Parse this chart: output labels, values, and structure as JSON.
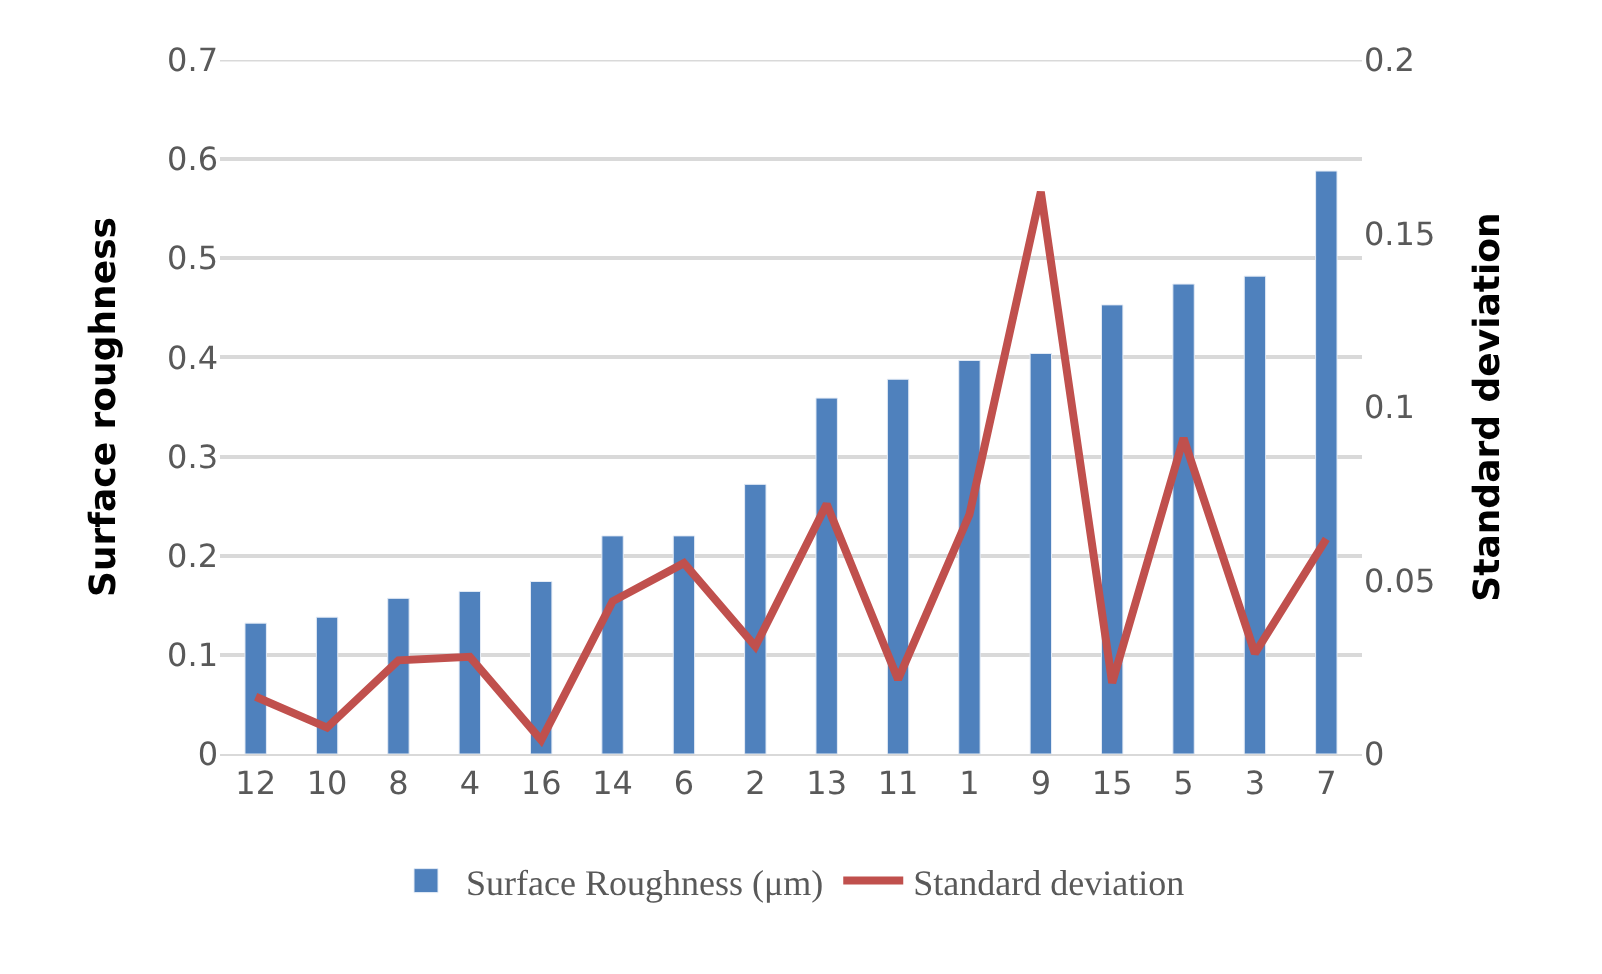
{
  "chart_data": {
    "type": "bar",
    "ylabel": "Surface roughness",
    "y2label": "Standard deviation",
    "categories": [
      "12",
      "10",
      "8",
      "4",
      "16",
      "14",
      "6",
      "2",
      "13",
      "11",
      "1",
      "9",
      "15",
      "5",
      "3",
      "7"
    ],
    "series": [
      {
        "name": "Surface Roughness (μm)",
        "color": "#4f81bd",
        "values": [
          0.132,
          0.138,
          0.157,
          0.164,
          0.174,
          0.22,
          0.22,
          0.272,
          0.359,
          0.378,
          0.397,
          0.404,
          0.453,
          0.474,
          0.482,
          0.588
        ]
      },
      {
        "name": "Standard deviation",
        "type": "line",
        "axis": "y2",
        "color": "#c0504d",
        "values": [
          0.0165,
          0.0076,
          0.027,
          0.028,
          0.004,
          0.044,
          0.055,
          0.031,
          0.072,
          0.0215,
          0.069,
          0.162,
          0.0205,
          0.091,
          0.029,
          0.062
        ]
      }
    ],
    "ylim": [
      0,
      0.7
    ],
    "yticks": [
      0,
      0.1,
      0.2,
      0.3,
      0.4,
      0.5,
      0.6,
      0.7
    ],
    "y2lim": [
      0,
      0.2
    ],
    "y2ticks": [
      0,
      0.05,
      0.1,
      0.15,
      0.2
    ],
    "grid": "y",
    "legend": "bottom",
    "marker": "none"
  }
}
